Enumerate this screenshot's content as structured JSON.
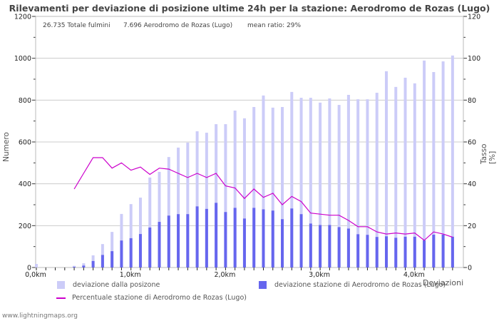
{
  "title": "Rilevamenti per deviazione di posizione ultime 24h per la stazione: Aerodromo de Rozas (Lugo)",
  "info": {
    "total": "26.735 Totale fulmini",
    "station": "7.696 Aerodromo de Rozas (Lugo)",
    "mean_ratio": "mean ratio: 29%"
  },
  "axes": {
    "left_title": "Numero",
    "right_title": "Tasso [%]",
    "x_title": "Deviazioni"
  },
  "legend": {
    "light": "deviazione dalla posizone",
    "dark": "deviazione stazione di Aerodromo de Rozas (Lugo)",
    "line": "Percentuale stazione di Aerodromo de Rozas (Lugo)"
  },
  "footer": "www.lightningmaps.org",
  "colors": {
    "light_bar": "#ccccf8",
    "dark_bar": "#6666ee",
    "line": "#cc00cc",
    "grid": "#cccccc",
    "axis": "#bbbbbb"
  },
  "chart_data": {
    "type": "bar",
    "title": "Rilevamenti per deviazione di posizione ultime 24h per la stazione: Aerodromo de Rozas (Lugo)",
    "xlabel": "Deviazioni",
    "ylabel": "Numero",
    "y2label": "Tasso [%]",
    "ylim": [
      0,
      1200
    ],
    "y2lim": [
      0,
      120
    ],
    "yticks": [
      0,
      200,
      400,
      600,
      800,
      1000,
      1200
    ],
    "y2ticks": [
      0,
      20,
      40,
      60,
      80,
      100,
      120
    ],
    "xticks": [
      "0,0km",
      "1,0km",
      "2,0km",
      "3,0km",
      "4,0km"
    ],
    "x_km": [
      0.0,
      0.1,
      0.2,
      0.3,
      0.4,
      0.5,
      0.6,
      0.7,
      0.8,
      0.9,
      1.0,
      1.1,
      1.2,
      1.3,
      1.4,
      1.5,
      1.6,
      1.7,
      1.8,
      1.9,
      2.0,
      2.1,
      2.2,
      2.3,
      2.4,
      2.5,
      2.6,
      2.7,
      2.8,
      2.9,
      3.0,
      3.1,
      3.2,
      3.3,
      3.4,
      3.5,
      3.6,
      3.7,
      3.8,
      3.9,
      4.0,
      4.1,
      4.2,
      4.3,
      4.4
    ],
    "series": [
      {
        "name": "deviazione dalla posizone",
        "type": "bar",
        "axis": "left",
        "values": [
          17,
          0,
          0,
          0,
          8,
          20,
          58,
          112,
          170,
          256,
          303,
          334,
          430,
          457,
          528,
          573,
          597,
          651,
          644,
          685,
          685,
          750,
          713,
          767,
          822,
          764,
          767,
          839,
          811,
          811,
          788,
          808,
          777,
          825,
          804,
          804,
          835,
          938,
          863,
          907,
          880,
          989,
          934,
          985,
          1013
        ]
      },
      {
        "name": "deviazione stazione di Aerodromo de Rozas (Lugo)",
        "type": "bar",
        "axis": "left",
        "values": [
          0,
          0,
          0,
          0,
          3,
          9,
          31,
          60,
          78,
          129,
          140,
          160,
          191,
          218,
          248,
          255,
          255,
          292,
          280,
          309,
          265,
          285,
          234,
          285,
          278,
          272,
          231,
          282,
          255,
          210,
          203,
          203,
          193,
          186,
          159,
          156,
          146,
          149,
          142,
          147,
          147,
          130,
          157,
          157,
          147
        ]
      },
      {
        "name": "Percentuale stazione di Aerodromo de Rozas (Lugo)",
        "type": "line",
        "axis": "right",
        "values": [
          null,
          null,
          null,
          null,
          37.5,
          45,
          52.5,
          52.5,
          47.5,
          50,
          46.5,
          48,
          44.5,
          47.5,
          47,
          45,
          43,
          45,
          43,
          45,
          39,
          38,
          33,
          37.5,
          33.5,
          35.5,
          30,
          34,
          31.5,
          26,
          25.5,
          25,
          25,
          22.5,
          19.5,
          19.5,
          17,
          16,
          16.5,
          16,
          16.5,
          13,
          17,
          16,
          14.5
        ]
      }
    ],
    "grid": true,
    "legend_position": "bottom"
  }
}
